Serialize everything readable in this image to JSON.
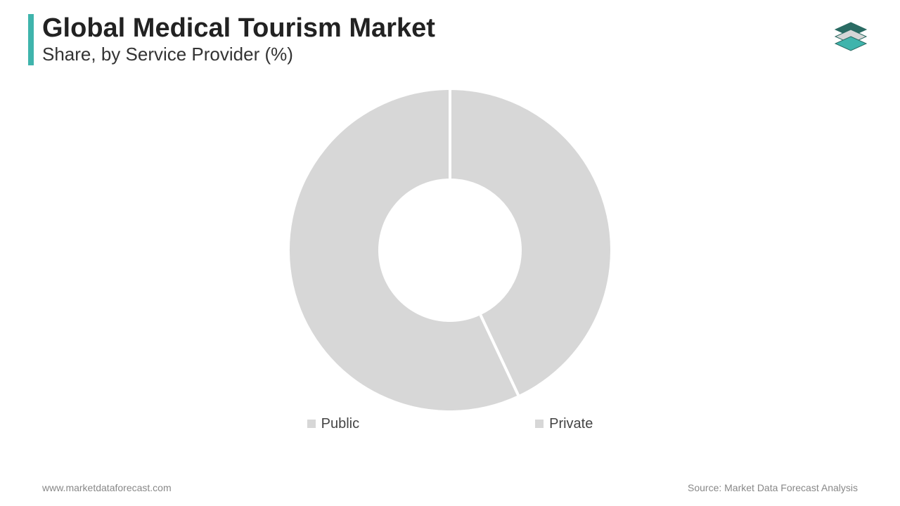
{
  "header": {
    "accent_color": "#3fb4ac",
    "title": "Global Medical Tourism Market",
    "subtitle": "Share, by Service Provider (%)",
    "title_fontsize": 38,
    "subtitle_fontsize": 26,
    "title_color": "#222222",
    "subtitle_color": "#333333"
  },
  "logo": {
    "layer_colors": [
      "#2a6b63",
      "#d6d6d6",
      "#3fb4ac"
    ],
    "stroke": "#2a6b63"
  },
  "chart": {
    "type": "donut",
    "background_color": "#ffffff",
    "outer_radius": 230,
    "inner_radius": 100,
    "gap_stroke_color": "#ffffff",
    "gap_stroke_width": 4,
    "start_angle_deg": -90,
    "segments": [
      {
        "label": "Public",
        "value": 43,
        "color": "#d7d7d7"
      },
      {
        "label": "Private",
        "value": 57,
        "color": "#d7d7d7"
      }
    ],
    "legend": {
      "marker_size": 12,
      "marker_color": "#d7d7d7",
      "font_size": 20,
      "font_color": "#444444",
      "bullet": "■"
    }
  },
  "footer": {
    "left": "www.marketdataforecast.com",
    "right": "Source: Market Data Forecast Analysis",
    "font_size": 14,
    "color": "#888888"
  }
}
